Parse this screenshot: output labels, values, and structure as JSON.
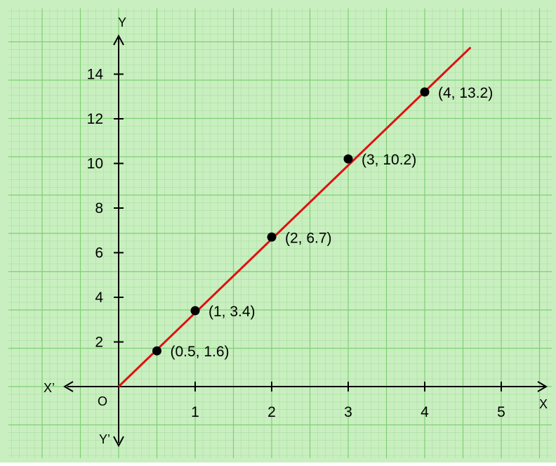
{
  "colors": {
    "paper": "#c9efc0",
    "grid_minor": "#a9dfa0",
    "grid_major": "#7fcf73",
    "axis": "#000000",
    "fit_line": "#e01010",
    "point": "#000000"
  },
  "axes": {
    "x_positive": "X",
    "x_negative": "X’",
    "y_positive": "Y",
    "y_negative": "Y’",
    "origin": "O"
  },
  "chart_data": {
    "type": "scatter",
    "title": "",
    "xlabel": "X",
    "ylabel": "Y",
    "x_ticks": [
      "1",
      "2",
      "3",
      "4",
      "5"
    ],
    "y_ticks": [
      "2",
      "4",
      "6",
      "8",
      "10",
      "12",
      "14"
    ],
    "xlim": [
      0,
      5.5
    ],
    "ylim": [
      0,
      15.2
    ],
    "grid": true,
    "points": [
      {
        "x": 0.5,
        "y": 1.6,
        "label": "(0.5, 1.6)"
      },
      {
        "x": 1,
        "y": 3.4,
        "label": "(1, 3.4)"
      },
      {
        "x": 2,
        "y": 6.7,
        "label": "(2, 6.7)"
      },
      {
        "x": 3,
        "y": 10.2,
        "label": "(3, 10.2)"
      },
      {
        "x": 4,
        "y": 13.2,
        "label": "(4, 13.2)"
      }
    ],
    "fit_line": {
      "x": [
        0,
        4.6
      ],
      "y": [
        0,
        15.2
      ]
    }
  }
}
